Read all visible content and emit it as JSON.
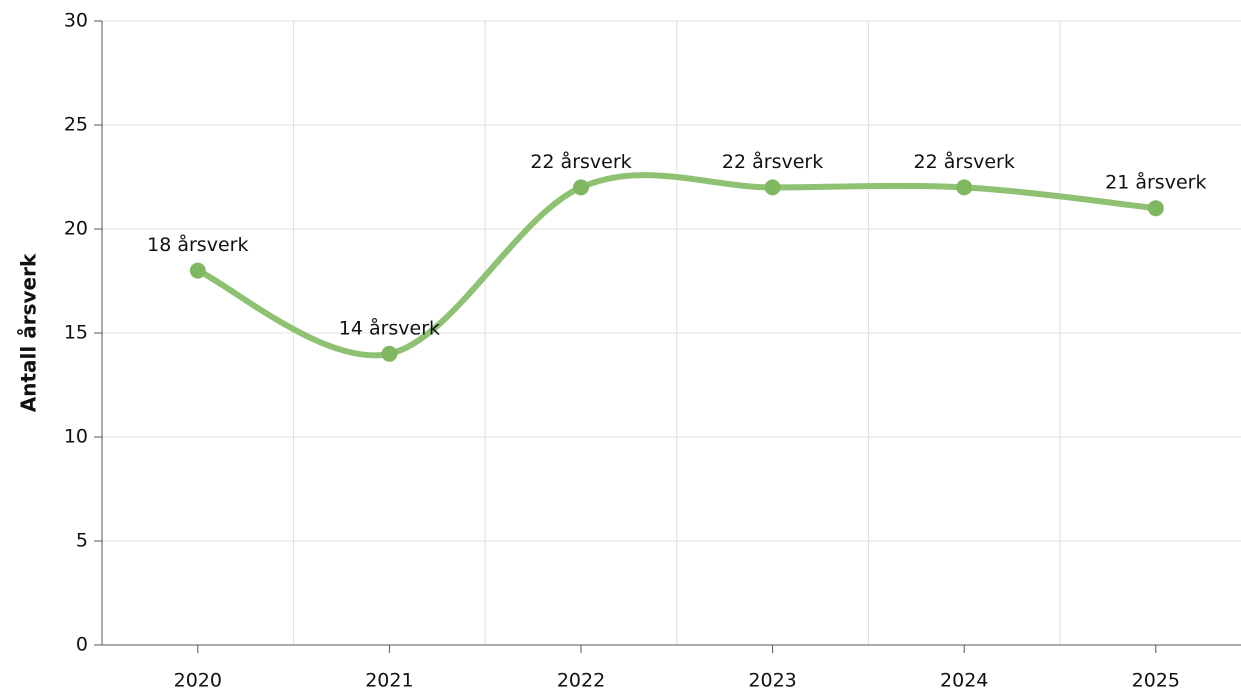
{
  "chart_data": {
    "type": "line",
    "y_label": "Antall årsverk",
    "categories": [
      "2020",
      "2021",
      "2022",
      "2023",
      "2024",
      "2025"
    ],
    "series": [
      {
        "name": "Antall årsverk",
        "color": "#8fc172",
        "values": [
          18,
          14,
          22,
          22,
          22,
          21
        ],
        "value_labels": [
          "18 årsverk",
          "14 årsverk",
          "22 årsverk",
          "22 årsverk",
          "22 årsverk",
          "21 årsverk"
        ]
      }
    ],
    "ylim": [
      0,
      30
    ],
    "yticks": [
      0,
      5,
      10,
      15,
      20,
      25,
      30
    ],
    "grid": true,
    "smooth": true
  }
}
